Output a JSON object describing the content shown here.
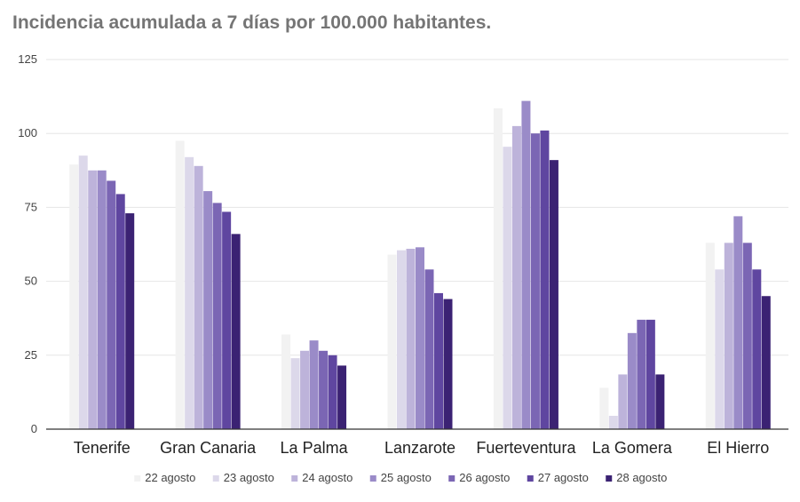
{
  "chart_data": {
    "type": "bar",
    "title": "Incidencia acumulada a 7 días por 100.000 habitantes.",
    "xlabel": "",
    "ylabel": "",
    "ylim": [
      0,
      125
    ],
    "yticks": [
      "0",
      "25",
      "50",
      "75",
      "100",
      "125"
    ],
    "grid": true,
    "legend_position": "bottom",
    "categories": [
      "Tenerife",
      "Gran Canaria",
      "La Palma",
      "Lanzarote",
      "Fuerteventura",
      "La Gomera",
      "El Hierro"
    ],
    "series": [
      {
        "name": "22 agosto",
        "color": "#f2f2f2",
        "values": [
          89.5,
          97.5,
          32,
          59,
          108.5,
          14,
          63
        ]
      },
      {
        "name": "23 agosto",
        "color": "#dcd8ea",
        "values": [
          92.5,
          92,
          24,
          60.5,
          95.5,
          4.5,
          54
        ]
      },
      {
        "name": "24 agosto",
        "color": "#bdb3da",
        "values": [
          87.5,
          89,
          26.5,
          61,
          102.5,
          18.5,
          63
        ]
      },
      {
        "name": "25 agosto",
        "color": "#9a8bc8",
        "values": [
          87.5,
          80.5,
          30,
          61.5,
          111,
          32.5,
          72
        ]
      },
      {
        "name": "26 agosto",
        "color": "#7b66b4",
        "values": [
          84,
          76.5,
          26.5,
          54,
          100,
          37,
          63
        ]
      },
      {
        "name": "27 agosto",
        "color": "#5f46a0",
        "values": [
          79.5,
          73.5,
          25,
          46,
          101,
          37,
          54
        ]
      },
      {
        "name": "28 agosto",
        "color": "#3b2273",
        "values": [
          73,
          66,
          21.5,
          44,
          91,
          18.5,
          45
        ]
      }
    ]
  }
}
